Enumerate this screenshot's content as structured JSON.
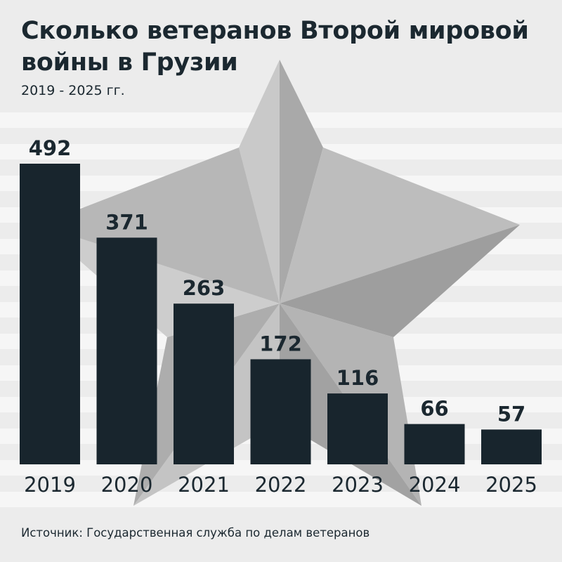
{
  "header": {
    "title": "Сколько ветеранов Второй мировой войны в Грузии",
    "subtitle": "2019 - 2025 гг."
  },
  "footer": {
    "source": "Источник: Государственная служба по делам ветеранов"
  },
  "colors": {
    "bar": "#18252d",
    "background": "#ececec",
    "text": "#1b2830"
  },
  "background_graphic": "star-icon",
  "chart_data": {
    "type": "bar",
    "title": "Сколько ветеранов Второй мировой войны в Грузии",
    "subtitle": "2019 - 2025 гг.",
    "categories": [
      "2019",
      "2020",
      "2021",
      "2022",
      "2023",
      "2024",
      "2025"
    ],
    "values": [
      492,
      371,
      263,
      172,
      116,
      66,
      57
    ],
    "xlabel": "",
    "ylabel": "",
    "ylim": [
      0,
      492
    ],
    "grid": false,
    "legend": "none",
    "data_labels": true
  }
}
